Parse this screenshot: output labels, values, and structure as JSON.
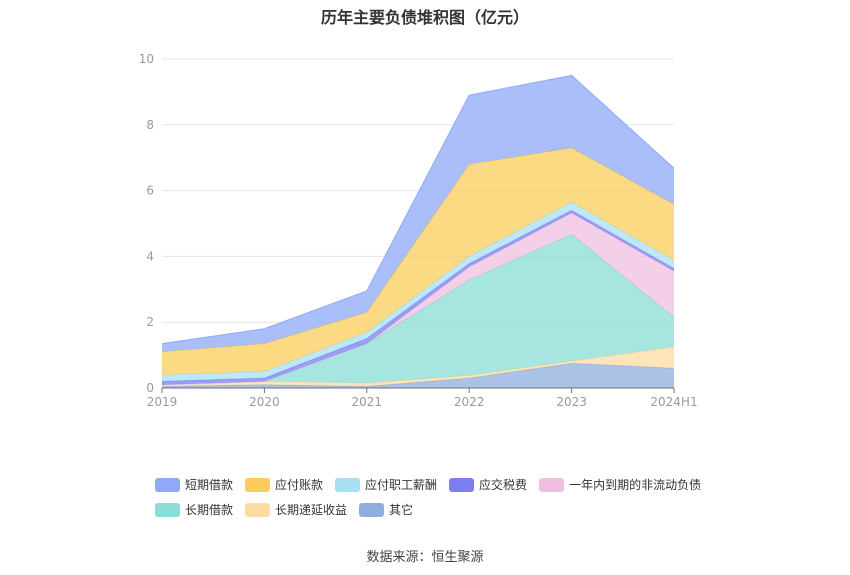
{
  "title": "历年主要负债堆积图（亿元）",
  "source": "数据来源：恒生聚源",
  "chart_data": {
    "type": "area",
    "stacked": true,
    "categories": [
      "2019",
      "2020",
      "2021",
      "2022",
      "2023",
      "2024H1"
    ],
    "y_ticks": [
      "0",
      "2",
      "4",
      "6",
      "8",
      "10"
    ],
    "ylim": [
      0,
      10
    ],
    "grid": true,
    "legend_position": "bottom",
    "series": [
      {
        "name": "其它",
        "color": "#8eaede",
        "values": [
          0.05,
          0.1,
          0.05,
          0.3,
          0.75,
          0.6
        ]
      },
      {
        "name": "长期递延收益",
        "color": "#fddba2",
        "values": [
          0.05,
          0.1,
          0.1,
          0.08,
          0.07,
          0.65
        ]
      },
      {
        "name": "长期借款",
        "color": "#8adcd6",
        "values": [
          0.0,
          0.0,
          1.2,
          2.9,
          3.85,
          0.9
        ]
      },
      {
        "name": "一年内到期的非流动负债",
        "color": "#efbfe0",
        "values": [
          0.0,
          0.0,
          0.0,
          0.4,
          0.65,
          1.4
        ]
      },
      {
        "name": "应交税费",
        "color": "#7b7ff0",
        "values": [
          0.1,
          0.1,
          0.15,
          0.1,
          0.08,
          0.08
        ]
      },
      {
        "name": "应付职工薪酬",
        "color": "#a8dff5",
        "values": [
          0.2,
          0.2,
          0.2,
          0.22,
          0.25,
          0.25
        ]
      },
      {
        "name": "应付账款",
        "color": "#fbcc5a",
        "values": [
          0.7,
          0.85,
          0.6,
          2.8,
          1.65,
          1.7
        ]
      },
      {
        "name": "短期借款",
        "color": "#8ea9f8",
        "values": [
          0.25,
          0.45,
          0.65,
          2.1,
          2.2,
          1.1
        ]
      }
    ]
  },
  "legend": {
    "rows": [
      [
        {
          "label": "短期借款",
          "color": "#8ea9f8"
        },
        {
          "label": "应付账款",
          "color": "#fbcc5a"
        },
        {
          "label": "应付职工薪酬",
          "color": "#a8dff5"
        },
        {
          "label": "应交税费",
          "color": "#7b7ff0"
        },
        {
          "label": "一年内到期的非流动负债",
          "color": "#efbfe0"
        }
      ],
      [
        {
          "label": "长期借款",
          "color": "#8adcd6"
        },
        {
          "label": "长期递延收益",
          "color": "#fddba2"
        },
        {
          "label": "其它",
          "color": "#8eaede"
        }
      ]
    ]
  }
}
